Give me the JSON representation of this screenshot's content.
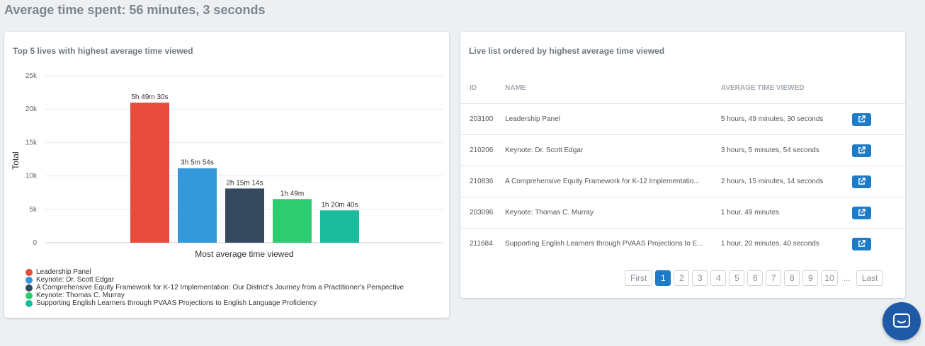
{
  "header": {
    "title": "Average time spent: 56 minutes, 3 seconds"
  },
  "chart_panel": {
    "title": "Top 5 lives with highest average time viewed"
  },
  "chart_data": {
    "type": "bar",
    "xlabel": "Most average time viewed",
    "ylabel": "Total",
    "ylim": [
      0,
      25000
    ],
    "yticks": [
      0,
      5000,
      10000,
      15000,
      20000,
      25000
    ],
    "ytick_labels": [
      "0",
      "5k",
      "10k",
      "15k",
      "20k",
      "25k"
    ],
    "grid": true,
    "legend_position": "bottom-left",
    "categories": [
      "Leadership Panel",
      "Keynote: Dr. Scott Edgar",
      "A Comprehensive Equity Framework for K-12 Implementation: Our District's Journey from a Practitioner's Perspective",
      "Keynote: Thomas C. Murray",
      "Supporting English Learners through PVAAS Projections to English Language Proficiency"
    ],
    "values": [
      20970,
      11154,
      8114,
      6540,
      4840
    ],
    "data_labels": [
      "5h 49m 30s",
      "3h 5m 54s",
      "2h 15m 14s",
      "1h 49m",
      "1h 20m 40s"
    ],
    "colors": [
      "#e74c3c",
      "#3498db",
      "#34495e",
      "#2ecc71",
      "#1abc9c"
    ]
  },
  "table_panel": {
    "title": "Live list ordered by highest average time viewed",
    "columns": {
      "id": "ID",
      "name": "NAME",
      "time": "AVERAGE TIME VIEWED"
    },
    "rows": [
      {
        "id": "203100",
        "name": "Leadership Panel",
        "time": "5 hours, 49 minutes, 30 seconds"
      },
      {
        "id": "210206",
        "name": "Keynote: Dr. Scott Edgar",
        "time": "3 hours, 5 minutes, 54 seconds"
      },
      {
        "id": "210836",
        "name": "A Comprehensive Equity Framework for K-12 Implementatio...",
        "time": "2 hours, 15 minutes, 14 seconds"
      },
      {
        "id": "203096",
        "name": "Keynote: Thomas C. Murray",
        "time": "1 hour, 49 minutes"
      },
      {
        "id": "211684",
        "name": "Supporting English Learners through PVAAS Projections to E...",
        "time": "1 hour, 20 minutes, 40 seconds"
      }
    ],
    "action_icon": "external-link-icon",
    "action_color": "#1e7bc8",
    "pagination": {
      "first": "First",
      "last": "Last",
      "pages": [
        "1",
        "2",
        "3",
        "4",
        "5",
        "6",
        "7",
        "8",
        "9",
        "10"
      ],
      "current": "1",
      "ellipsis": "..."
    }
  },
  "chat_launcher": {
    "icon": "chat-bubble-icon",
    "color": "#1f5aa6"
  }
}
